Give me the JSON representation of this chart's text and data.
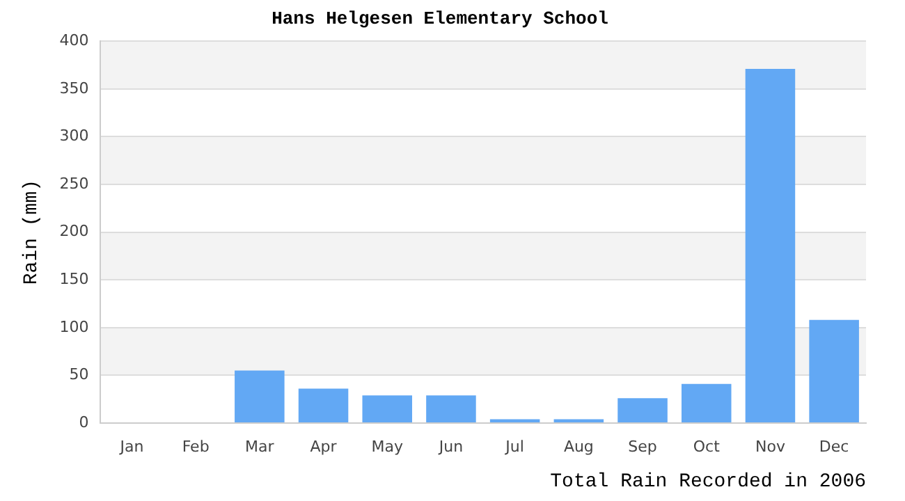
{
  "chart_data": {
    "type": "bar",
    "title": "Hans Helgesen Elementary School",
    "xlabel": "Total Rain Recorded in 2006",
    "ylabel": "Rain (mm)",
    "categories": [
      "Jan",
      "Feb",
      "Mar",
      "Apr",
      "May",
      "Jun",
      "Jul",
      "Aug",
      "Sep",
      "Oct",
      "Nov",
      "Dec"
    ],
    "values": [
      0,
      0,
      55,
      36,
      29,
      29,
      4,
      4,
      26,
      41,
      371,
      108
    ],
    "color": "#62a8f4",
    "ylim": [
      0,
      400
    ],
    "yticks": [
      0,
      50,
      100,
      150,
      200,
      250,
      300,
      350,
      400
    ],
    "grid": true,
    "legend": false
  }
}
